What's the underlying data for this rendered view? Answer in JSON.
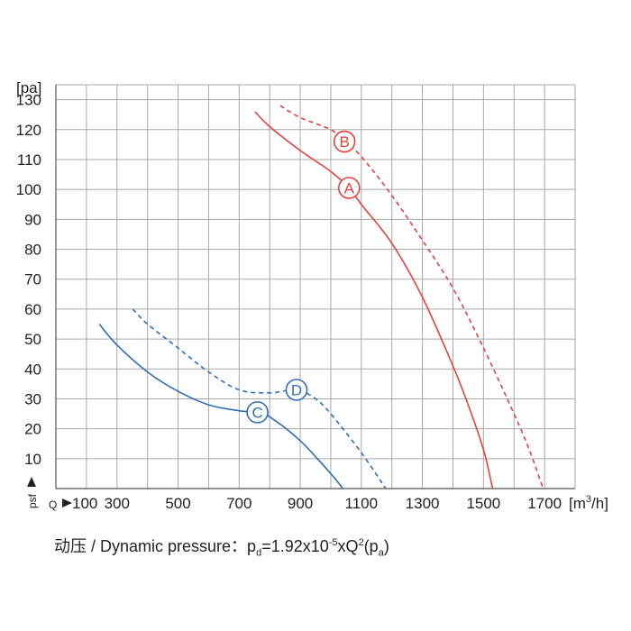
{
  "chart_data": {
    "type": "line",
    "xlabel": "m3/h",
    "ylabel": "pa",
    "x_axis_prefix": "Q",
    "x_axis_ticks": [
      "100",
      "300",
      "500",
      "700",
      "900",
      "1100",
      "1300",
      "1500",
      "1700"
    ],
    "y_axis_prefix": "psf",
    "y_axis_ticks": [
      "10",
      "20",
      "30",
      "40",
      "50",
      "60",
      "70",
      "80",
      "90",
      "100",
      "110",
      "120",
      "130"
    ],
    "xlim": [
      100,
      1800
    ],
    "ylim": [
      0,
      135
    ],
    "grid": true,
    "colors": {
      "red": "#e8413c",
      "blue": "#2f6db5"
    },
    "series": [
      {
        "name": "A",
        "color": "#e8413c",
        "style": "solid",
        "label_at": [
          1060,
          100.5
        ],
        "x": [
          752,
          800,
          900,
          1000,
          1060,
          1100,
          1200,
          1300,
          1400,
          1450,
          1500,
          1530
        ],
        "y": [
          126,
          121,
          113,
          106,
          100.5,
          95,
          82,
          64,
          41,
          28,
          13,
          0
        ]
      },
      {
        "name": "B",
        "color": "#e8413c",
        "style": "dashed",
        "label_at": [
          1045,
          116
        ],
        "x": [
          835,
          900,
          1000,
          1045,
          1100,
          1200,
          1300,
          1400,
          1500,
          1600,
          1650,
          1695
        ],
        "y": [
          128,
          124,
          120,
          116,
          111,
          98,
          83,
          67,
          47,
          25,
          13,
          0
        ]
      },
      {
        "name": "C",
        "color": "#2f6db5",
        "style": "solid",
        "label_at": [
          760,
          25.5
        ],
        "x": [
          242,
          300,
          400,
          500,
          600,
          700,
          760,
          800,
          900,
          1000,
          1040
        ],
        "y": [
          55,
          48,
          39,
          32.5,
          28,
          26,
          25.5,
          24,
          16,
          5,
          0
        ]
      },
      {
        "name": "D",
        "color": "#2f6db5",
        "style": "dashed",
        "label_at": [
          888,
          33
        ],
        "x": [
          352,
          400,
          500,
          600,
          700,
          800,
          888,
          950,
          1000,
          1100,
          1180
        ],
        "y": [
          60,
          55,
          47,
          39,
          33,
          32,
          33,
          30,
          25,
          12,
          0
        ]
      }
    ]
  },
  "formula": {
    "prefix": "动压 / Dynamic pressure：p",
    "sub1": "d",
    "mid": "=1.92x10",
    "exp": "-5",
    "mid2": "xQ",
    "exp2": "2",
    "open": "(p",
    "sub2": "a",
    "close": ")"
  }
}
